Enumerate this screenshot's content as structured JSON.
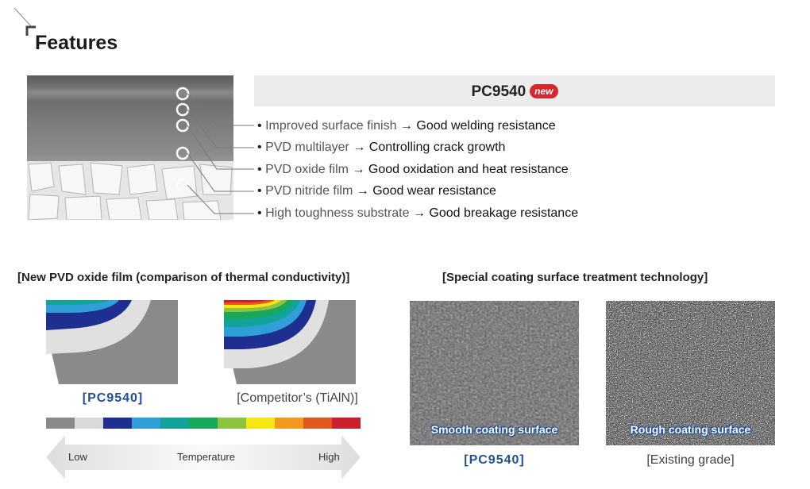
{
  "header": {
    "title": "Features"
  },
  "product": {
    "name": "PC9540",
    "badge": "new"
  },
  "features": [
    {
      "left": "Improved surface finish",
      "right": "Good welding resistance"
    },
    {
      "left": "PVD multilayer",
      "right": "Controlling crack growth"
    },
    {
      "left": "PVD oxide film",
      "right": "Good oxidation and heat resistance"
    },
    {
      "left": "PVD nitride film",
      "right": "Good wear resistance"
    },
    {
      "left": "High toughness substrate",
      "right": "Good breakage resistance"
    }
  ],
  "bullet": "•",
  "arrow": "→",
  "thermal": {
    "title": "[New PVD oxide film (comparison of thermal conductivity)]",
    "left_caption": "[PC9540]",
    "right_caption": "[Competitor’s (TiAlN)]",
    "scale_low": "Low",
    "scale_mid": "Temperature",
    "scale_high": "High",
    "scale_colors": [
      "#8a8a8a",
      "#d9d9d9",
      "#1f2f8f",
      "#2f9fd8",
      "#12a39a",
      "#19a85a",
      "#8cc43f",
      "#f4e714",
      "#f29a1d",
      "#e3581f",
      "#cc1f2d"
    ]
  },
  "surface": {
    "title": "[Special coating surface treatment technology]",
    "left_label": "Smooth coating surface",
    "right_label": "Rough coating surface",
    "left_caption": "[PC9540]",
    "right_caption": "[Existing grade]"
  }
}
